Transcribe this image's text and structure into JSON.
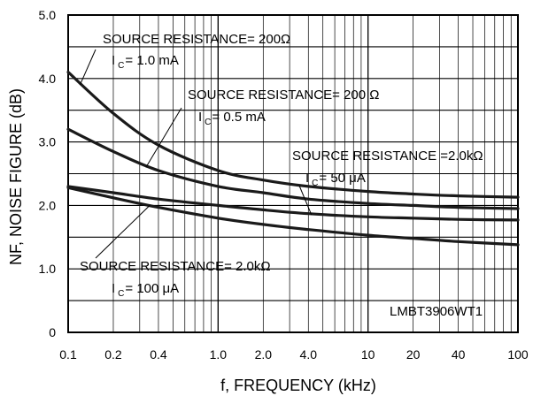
{
  "chart_data": {
    "type": "line",
    "title": "",
    "xlabel": "f, FREQUENCY (kHz)",
    "ylabel": "NF, NOISE FIGURE (dB)",
    "x_scale": "log",
    "xlim": [
      0.1,
      100
    ],
    "ylim": [
      0,
      5.0
    ],
    "grid": true,
    "x_ticks": [
      "0.1",
      "0.2",
      "0.4",
      "1.0",
      "2.0",
      "4.0",
      "10",
      "20",
      "40",
      "100"
    ],
    "y_ticks": [
      "0",
      "1.0",
      "2.0",
      "3.0",
      "4.0",
      "5.0"
    ],
    "part_label": "LMBT3906WT1",
    "annotations": [
      {
        "line1": "SOURCE RESISTANCE= 200Ω",
        "ic_label": "I",
        "ic_sub": "C",
        "ic_value": "= 1.0 mA"
      },
      {
        "line1": "SOURCE RESISTANCE= 200 Ω",
        "ic_label": "I",
        "ic_sub": "C",
        "ic_value": "= 0.5 mA"
      },
      {
        "line1": "SOURCE RESISTANCE =2.0kΩ",
        "ic_label": "I",
        "ic_sub": "C",
        "ic_value": "= 50 μA"
      },
      {
        "line1": "SOURCE RESISTANCE= 2.0kΩ",
        "ic_label": "I",
        "ic_sub": "C",
        "ic_value": "= 100 μA"
      }
    ],
    "series": [
      {
        "x": [
          0.1,
          0.2,
          0.4,
          1,
          2,
          4,
          10,
          20,
          40,
          100
        ],
        "y": [
          4.1,
          3.45,
          2.95,
          2.55,
          2.4,
          2.3,
          2.22,
          2.18,
          2.15,
          2.13
        ]
      },
      {
        "x": [
          0.1,
          0.2,
          0.4,
          1,
          2,
          4,
          10,
          20,
          40,
          100
        ],
        "y": [
          3.2,
          2.85,
          2.55,
          2.3,
          2.2,
          2.1,
          2.03,
          2.0,
          1.97,
          1.95
        ]
      },
      {
        "x": [
          0.1,
          0.2,
          0.4,
          1,
          2,
          4,
          10,
          20,
          40,
          100
        ],
        "y": [
          2.3,
          2.2,
          2.1,
          2.0,
          1.93,
          1.87,
          1.82,
          1.8,
          1.78,
          1.77
        ]
      },
      {
        "x": [
          0.1,
          0.2,
          0.4,
          1,
          2,
          4,
          10,
          20,
          40,
          100
        ],
        "y": [
          2.28,
          2.12,
          1.97,
          1.8,
          1.7,
          1.62,
          1.53,
          1.48,
          1.43,
          1.38
        ]
      }
    ]
  }
}
